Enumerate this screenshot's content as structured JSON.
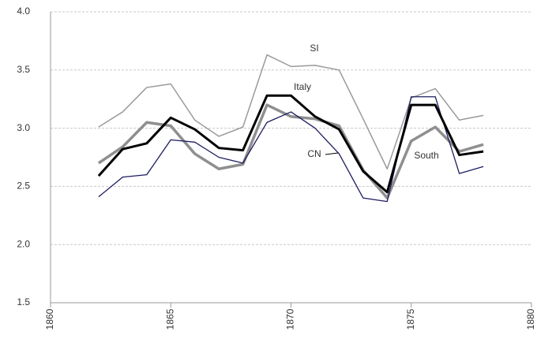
{
  "chart_data": {
    "type": "line",
    "x": [
      1862,
      1863,
      1864,
      1865,
      1866,
      1867,
      1868,
      1869,
      1870,
      1871,
      1872,
      1873,
      1874,
      1875,
      1876,
      1877,
      1878
    ],
    "series": [
      {
        "name": "SI",
        "color": "#9a9a9a",
        "values": [
          3.01,
          3.14,
          3.35,
          3.38,
          3.07,
          2.93,
          3.01,
          3.63,
          3.53,
          3.54,
          3.5,
          3.08,
          2.65,
          3.26,
          3.34,
          3.07,
          3.11
        ]
      },
      {
        "name": "Italy",
        "color": "#000000",
        "values": [
          2.59,
          2.82,
          2.87,
          3.09,
          2.99,
          2.83,
          2.81,
          3.28,
          3.28,
          3.1,
          2.99,
          2.63,
          2.45,
          3.2,
          3.2,
          2.77,
          2.8
        ]
      },
      {
        "name": "South",
        "color": "#8f8f8f",
        "values": [
          2.7,
          2.84,
          3.05,
          3.02,
          2.78,
          2.65,
          2.69,
          3.2,
          3.1,
          3.08,
          3.02,
          2.64,
          2.4,
          2.89,
          3.01,
          2.8,
          2.86
        ]
      },
      {
        "name": "CN",
        "color": "#1c1c60",
        "values": [
          2.41,
          2.58,
          2.6,
          2.9,
          2.88,
          2.75,
          2.7,
          3.05,
          3.14,
          3.0,
          2.78,
          2.4,
          2.37,
          3.27,
          3.27,
          2.61,
          2.67
        ]
      }
    ],
    "xlim": [
      1860,
      1880
    ],
    "xticks": [
      1860,
      1865,
      1870,
      1875,
      1880
    ],
    "ylim": [
      1.5,
      4
    ],
    "yticks": [
      {
        "value": 1.5,
        "label": "1.5"
      },
      {
        "value": 2,
        "label": "2.0"
      },
      {
        "value": 2.5,
        "label": "2.5"
      },
      {
        "value": 3,
        "label": "3.0"
      },
      {
        "value": 3.5,
        "label": "3.5"
      },
      {
        "value": 4,
        "label": "4.0"
      }
    ],
    "grid": true
  }
}
